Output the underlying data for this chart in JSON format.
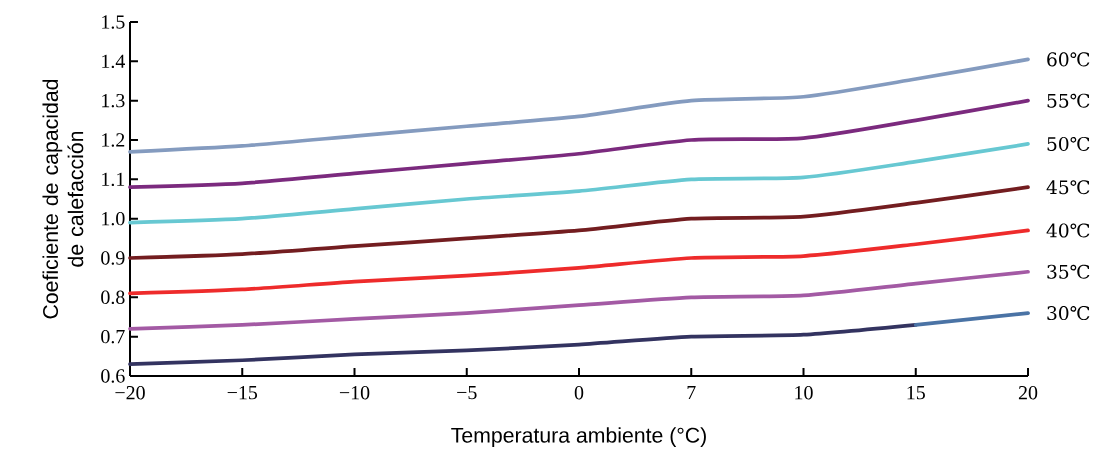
{
  "chart_data": {
    "type": "line",
    "xlabel": "Temperatura ambiente (°C)",
    "ylabel": "Coeficiente de capacidad de calefacción",
    "categories": [
      "−20",
      "−15",
      "−10",
      "−5",
      "0",
      "7",
      "10",
      "15",
      "20"
    ],
    "ylim": [
      0.6,
      1.5
    ],
    "yticks": [
      0.6,
      0.7,
      0.8,
      0.9,
      {
        "value": 1.0,
        "label": "1.0"
      },
      1.1,
      1.2,
      1.3,
      1.4,
      1.5
    ],
    "marker": "none",
    "line_style": "solid",
    "series": [
      {
        "name": "60℃",
        "color": "#849bbf",
        "values": [
          1.17,
          1.185,
          1.21,
          1.235,
          1.26,
          1.3,
          1.31,
          1.355,
          1.405
        ]
      },
      {
        "name": "55℃",
        "color": "#7b2a7e",
        "values": [
          1.08,
          1.09,
          1.115,
          1.14,
          1.165,
          1.2,
          1.205,
          1.25,
          1.3
        ]
      },
      {
        "name": "50℃",
        "color": "#67c8d2",
        "values": [
          0.99,
          1.0,
          1.025,
          1.05,
          1.07,
          1.1,
          1.105,
          1.145,
          1.19
        ]
      },
      {
        "name": "45℃",
        "color": "#731d20",
        "values": [
          0.9,
          0.91,
          0.93,
          0.95,
          0.97,
          1.0,
          1.005,
          1.04,
          1.08
        ]
      },
      {
        "name": "40℃",
        "color": "#ee2b2b",
        "values": [
          0.81,
          0.82,
          0.84,
          0.855,
          0.875,
          0.9,
          0.905,
          0.935,
          0.97
        ]
      },
      {
        "name": "35℃",
        "color": "#a35aa4",
        "values": [
          0.72,
          0.73,
          0.745,
          0.76,
          0.78,
          0.8,
          0.805,
          0.835,
          0.865
        ]
      },
      {
        "color": "#333360",
        "values": [
          0.63,
          0.64,
          0.655,
          0.665,
          0.68,
          0.7,
          0.705,
          0.73,
          null
        ]
      },
      {
        "name": "30℃",
        "color": "#4a73a5",
        "values": [
          null,
          null,
          null,
          null,
          null,
          null,
          null,
          0.73,
          0.76
        ]
      }
    ]
  }
}
